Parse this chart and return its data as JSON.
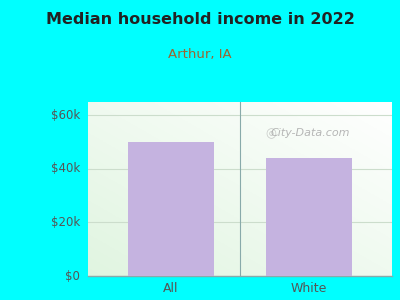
{
  "title": "Median household income in 2022",
  "subtitle": "Arthur, IA",
  "categories": [
    "All",
    "White"
  ],
  "values": [
    50000,
    44000
  ],
  "bar_color": "#c5b3e0",
  "background_color": "#00FFFF",
  "title_color": "#222222",
  "subtitle_color": "#996633",
  "tick_label_color": "#555555",
  "yticks": [
    0,
    20000,
    40000,
    60000
  ],
  "ytick_labels": [
    "$0",
    "$20k",
    "$40k",
    "$60k"
  ],
  "ylim": [
    0,
    65000
  ],
  "watermark_text": "City-Data.com",
  "watermark_color": "#aaaaaa",
  "divider_color": "#88aaaa",
  "grid_color": "#ccddcc"
}
